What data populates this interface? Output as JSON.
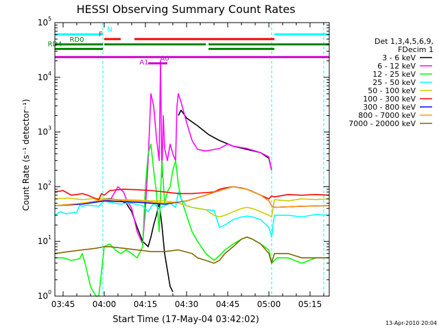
{
  "chart_data": {
    "type": "line",
    "title": "HESSI Observing Summary Count Rates",
    "xlabel": "Start Time (17-May-04 03:42:02)",
    "ylabel": "Count Rate (s⁻¹ detector⁻¹)",
    "y_scale": "log",
    "x_unit": "minutes after 03:42:02",
    "x_range": [
      0,
      100
    ],
    "ylim": [
      1,
      100000
    ],
    "x_ticks": [
      {
        "x": 3,
        "label": "03:45"
      },
      {
        "x": 18,
        "label": "04:00"
      },
      {
        "x": 33,
        "label": "04:15"
      },
      {
        "x": 48,
        "label": "04:30"
      },
      {
        "x": 63,
        "label": "04:45"
      },
      {
        "x": 78,
        "label": "05:00"
      },
      {
        "x": 93,
        "label": "05:15"
      }
    ],
    "y_ticks": [
      {
        "v": 1,
        "mant": "10",
        "exp": "0"
      },
      {
        "v": 10,
        "mant": "10",
        "exp": "1"
      },
      {
        "v": 100,
        "mant": "10",
        "exp": "2"
      },
      {
        "v": 1000,
        "mant": "10",
        "exp": "3"
      },
      {
        "v": 10000,
        "mant": "10",
        "exp": "4"
      },
      {
        "v": 100000,
        "mant": "10",
        "exp": "5"
      }
    ],
    "legend_title": [
      "Det 1,3,4,5,6,9,",
      "FDecim 1"
    ],
    "series": [
      {
        "name": "3 - 6 keV",
        "color": "#000000",
        "x": [
          0,
          8,
          12,
          15,
          18,
          20,
          23,
          26,
          28,
          30,
          32,
          33,
          34,
          35,
          36,
          37,
          38,
          39,
          40,
          41,
          42,
          43,
          44,
          44.5,
          45,
          46,
          48,
          52,
          56,
          60,
          65,
          70,
          75,
          78,
          79,
          80,
          100
        ],
        "y": [
          null,
          null,
          null,
          null,
          60,
          60,
          58,
          50,
          35,
          18,
          10,
          9,
          8,
          12,
          20,
          30,
          50,
          20,
          6,
          3,
          1.5,
          1.2,
          null,
          null,
          2000,
          2500,
          1800,
          1300,
          900,
          700,
          550,
          480,
          420,
          330,
          200,
          null,
          null
        ]
      },
      {
        "name": "6 - 12 keV",
        "color": "#ff00ff",
        "x": [
          0,
          8,
          12,
          15,
          18,
          20,
          23,
          25,
          26,
          28,
          30,
          32,
          33,
          34,
          35,
          36,
          37,
          38,
          38.5,
          39,
          39.5,
          40,
          41,
          42,
          43,
          44,
          44.5,
          45,
          46,
          48,
          50,
          52,
          55,
          60,
          63,
          65,
          70,
          75,
          78,
          79,
          80,
          100
        ],
        "y": [
          null,
          null,
          null,
          null,
          60,
          55,
          100,
          80,
          60,
          40,
          15,
          9,
          40,
          300,
          5000,
          3000,
          800,
          300,
          20000,
          150,
          2000,
          500,
          300,
          600,
          400,
          300,
          3000,
          5000,
          3500,
          1500,
          700,
          480,
          450,
          500,
          600,
          550,
          500,
          420,
          350,
          200,
          null,
          null
        ]
      },
      {
        "name": "12 - 25 keV",
        "color": "#00ff00",
        "x": [
          0,
          3,
          6,
          9,
          10,
          11,
          13,
          14,
          15,
          16,
          18,
          20,
          22,
          24,
          26,
          28,
          30,
          32,
          33,
          34,
          35,
          36,
          37,
          38,
          39,
          40,
          41,
          42,
          43,
          44,
          45,
          46,
          48,
          50,
          52,
          55,
          58,
          60,
          62,
          65,
          68,
          70,
          72,
          75,
          78,
          79,
          81,
          85,
          90,
          95,
          100
        ],
        "y": [
          5,
          5,
          4.5,
          4.8,
          6,
          4,
          1.5,
          1.2,
          1,
          0.8,
          8,
          9,
          7,
          6,
          7,
          6,
          5,
          8,
          100,
          400,
          600,
          200,
          80,
          15,
          300,
          50,
          80,
          100,
          200,
          300,
          110,
          60,
          30,
          15,
          10,
          6,
          4.5,
          5.5,
          7,
          9,
          11,
          12,
          11,
          9,
          7,
          4,
          5,
          5,
          4,
          5,
          5
        ]
      },
      {
        "name": "25 - 50 keV",
        "color": "#00ffff",
        "x": [
          0,
          2,
          4,
          6,
          8,
          9,
          10,
          12,
          14,
          16,
          18,
          20,
          22,
          24,
          26,
          28,
          30,
          32,
          34,
          36,
          38,
          40,
          42,
          44,
          45,
          46,
          48,
          50,
          52,
          55,
          58,
          60,
          62,
          65,
          68,
          70,
          72,
          75,
          78,
          79,
          80,
          85,
          90,
          95,
          100
        ],
        "y": [
          30,
          35,
          32,
          33,
          34,
          45,
          44,
          46,
          45,
          44,
          55,
          52,
          50,
          48,
          50,
          50,
          47,
          45,
          35,
          50,
          40,
          45,
          50,
          42,
          80,
          60,
          45,
          42,
          40,
          38,
          37,
          18,
          20,
          25,
          28,
          29,
          28,
          25,
          18,
          12,
          30,
          30,
          28,
          31,
          30
        ]
      },
      {
        "name": "50 - 100 keV",
        "color": "#cccc00",
        "x": [
          0,
          5,
          10,
          15,
          18,
          20,
          25,
          30,
          35,
          40,
          45,
          50,
          55,
          58,
          60,
          62,
          65,
          68,
          70,
          72,
          75,
          78,
          79,
          80,
          85,
          90,
          95,
          100
        ],
        "y": [
          60,
          62,
          58,
          61,
          60,
          59,
          58,
          57,
          55,
          55,
          50,
          42,
          38,
          30,
          28,
          30,
          35,
          40,
          42,
          40,
          35,
          30,
          28,
          58,
          55,
          60,
          58,
          60
        ]
      },
      {
        "name": "100 - 300 keV",
        "color": "#ff0000",
        "x": [
          0,
          3,
          6,
          8,
          10,
          12,
          15,
          16,
          17,
          18,
          20,
          25,
          30,
          35,
          40,
          45,
          50,
          55,
          58,
          60,
          62,
          65,
          68,
          70,
          72,
          75,
          78,
          79,
          80,
          85,
          90,
          95,
          100
        ],
        "y": [
          80,
          85,
          70,
          72,
          75,
          70,
          60,
          58,
          75,
          70,
          85,
          90,
          88,
          85,
          80,
          75,
          75,
          78,
          80,
          90,
          95,
          100,
          95,
          90,
          82,
          70,
          60,
          68,
          65,
          72,
          70,
          72,
          70
        ]
      },
      {
        "name": "300 - 800 keV",
        "color": "#0000ff",
        "x": [
          0,
          10,
          18,
          30,
          40,
          48,
          55,
          60,
          65,
          70,
          75,
          78,
          79,
          80,
          90,
          100
        ],
        "y": [
          45,
          48,
          55,
          52,
          48,
          55,
          70,
          85,
          100,
          90,
          70,
          55,
          45,
          42,
          44,
          45
        ]
      },
      {
        "name": "800 - 7000 keV",
        "color": "#ff9900",
        "x": [
          0,
          10,
          18,
          30,
          40,
          48,
          55,
          60,
          65,
          70,
          75,
          78,
          79,
          80,
          90,
          100
        ],
        "y": [
          45,
          50,
          58,
          55,
          50,
          55,
          70,
          85,
          100,
          90,
          70,
          55,
          45,
          42,
          44,
          45
        ]
      },
      {
        "name": "7000 - 20000 keV",
        "color": "#806600",
        "x": [
          0,
          5,
          10,
          15,
          18,
          20,
          25,
          30,
          35,
          40,
          45,
          50,
          52,
          55,
          58,
          60,
          62,
          65,
          68,
          70,
          72,
          75,
          78,
          79,
          80,
          85,
          90,
          95,
          100
        ],
        "y": [
          6,
          6.5,
          7,
          7.5,
          8,
          8,
          7.5,
          7,
          6.5,
          6.5,
          7,
          6,
          5,
          4.5,
          4,
          4.5,
          6,
          8,
          11,
          12,
          11,
          9,
          6,
          4,
          6,
          6,
          5,
          5,
          5
        ]
      }
    ],
    "state_bars": [
      {
        "label": "N",
        "color": "#00ffff",
        "level": 61000,
        "segments": [
          [
            0,
            17.5
          ],
          [
            80,
            100
          ]
        ]
      },
      {
        "label": "F",
        "color": "#ff0000",
        "level": 50000,
        "segments": [
          [
            18,
            24
          ],
          [
            29,
            80
          ]
        ]
      },
      {
        "label": "RD0",
        "color": "#008000",
        "level": 40000,
        "segments": [
          [
            0,
            17.5
          ],
          [
            18,
            55
          ],
          [
            56,
            100
          ]
        ]
      },
      {
        "label": "RD4",
        "color": "#008000",
        "level": 33000,
        "segments": [
          [
            0,
            17.5
          ],
          [
            56,
            80
          ]
        ]
      },
      {
        "label": "A1",
        "color": "#cc00cc",
        "level": 23500,
        "segments": [
          [
            0,
            100
          ]
        ]
      },
      {
        "label": "A0",
        "color": "#cc00cc",
        "level": 18000,
        "segments": [
          [
            34,
            41
          ]
        ]
      }
    ],
    "vertical_markers": [
      {
        "x": 0,
        "color": "#00ffff"
      },
      {
        "x": 17.5,
        "color": "#00ffff"
      },
      {
        "x": 79,
        "color": "#00ffff"
      },
      {
        "x": 98,
        "color": "#00ffff"
      }
    ],
    "footer_date": "13-Apr-2010 20:04"
  }
}
